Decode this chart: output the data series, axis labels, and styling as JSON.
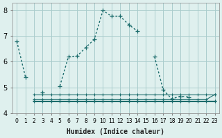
{
  "bg_color": "#dff0ee",
  "grid_color": "#aacccc",
  "line_color": "#1a6b6b",
  "xlabel": "Humidex (Indice chaleur)",
  "ylabel": "",
  "xlim": [
    -0.5,
    23.5
  ],
  "ylim": [
    4.0,
    8.3
  ],
  "yticks": [
    4,
    5,
    6,
    7,
    8
  ],
  "xticks": [
    0,
    1,
    2,
    3,
    4,
    5,
    6,
    7,
    8,
    9,
    10,
    11,
    12,
    13,
    14,
    15,
    16,
    17,
    18,
    19,
    20,
    21,
    22,
    23
  ],
  "main_line": {
    "x": [
      0,
      1,
      2,
      3,
      4,
      5,
      6,
      7,
      8,
      9,
      10,
      11,
      12,
      13,
      14,
      15,
      16,
      17,
      18,
      19,
      20,
      21,
      22,
      23
    ],
    "y": [
      6.8,
      5.4,
      null,
      4.8,
      null,
      5.05,
      6.2,
      6.22,
      6.55,
      6.88,
      8.0,
      7.78,
      7.78,
      7.45,
      7.2,
      null,
      6.2,
      4.9,
      4.55,
      4.65,
      4.62,
      null,
      null,
      null
    ]
  },
  "flat_lines": [
    {
      "x": [
        2,
        3,
        4,
        5,
        6,
        7,
        8,
        9,
        10,
        11,
        12,
        13,
        14,
        15,
        16,
        17,
        18,
        19,
        20,
        21,
        22,
        23
      ],
      "y": [
        4.72,
        4.72,
        4.72,
        4.72,
        4.72,
        4.72,
        4.72,
        4.72,
        4.72,
        4.72,
        4.72,
        4.72,
        4.72,
        4.72,
        4.72,
        4.72,
        4.72,
        4.72,
        4.72,
        4.72,
        4.72,
        4.72
      ]
    },
    {
      "x": [
        2,
        3,
        4,
        5,
        6,
        7,
        8,
        9,
        10,
        11,
        12,
        13,
        14,
        15,
        16,
        17,
        18,
        19,
        20,
        21,
        22,
        23
      ],
      "y": [
        4.52,
        4.52,
        4.52,
        4.52,
        4.52,
        4.52,
        4.52,
        4.52,
        4.52,
        4.52,
        4.52,
        4.52,
        4.52,
        4.52,
        4.52,
        4.52,
        4.52,
        4.52,
        4.52,
        4.52,
        4.52,
        4.72
      ]
    },
    {
      "x": [
        2,
        3,
        4,
        5,
        6,
        7,
        8,
        9,
        10,
        11,
        12,
        13,
        14,
        15,
        16,
        17,
        18,
        19,
        20,
        21,
        22,
        23
      ],
      "y": [
        4.48,
        4.48,
        4.48,
        4.48,
        4.48,
        4.48,
        4.48,
        4.48,
        4.48,
        4.48,
        4.48,
        4.48,
        4.48,
        4.48,
        4.48,
        4.48,
        4.48,
        4.48,
        4.48,
        4.48,
        4.48,
        4.48
      ]
    },
    {
      "x": [
        2,
        3,
        4,
        5,
        6,
        7,
        8,
        9,
        10,
        11,
        12,
        13,
        14,
        15,
        16,
        17,
        18,
        19,
        20,
        21,
        22,
        23
      ],
      "y": [
        4.45,
        4.45,
        4.45,
        4.45,
        4.45,
        4.45,
        4.45,
        4.45,
        4.45,
        4.45,
        4.45,
        4.45,
        4.45,
        4.45,
        4.45,
        4.45,
        4.45,
        4.45,
        4.45,
        4.45,
        4.45,
        4.45
      ]
    }
  ]
}
